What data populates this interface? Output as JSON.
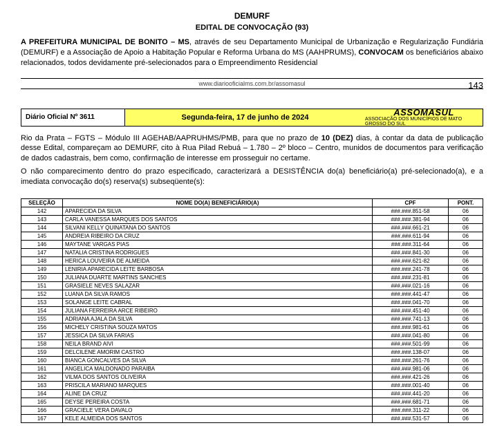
{
  "header": {
    "dept": "DEMURF",
    "edital": "EDITAL DE CONVOCAÇÃO (93)"
  },
  "para1_a": "A PREFEITURA MUNICIPAL DE BONITO – MS",
  "para1_b": ", através de seu Departamento Municipal de Urbanização e Regularização Fundiária (DEMURF) e a Associação de Apoio a Habitação Popular e Reforma Urbana do MS (AAHPRUMS), ",
  "para1_c": "CONVOCAM",
  "para1_d": " os beneficiários abaixo relacionados, todos devidamente pré-selecionados para o  Empreendimento Residencial",
  "footer_url": "www.diariooficialms.com.br/assomasul",
  "page_number": "143",
  "banner": {
    "left": "Diário Oficial Nº 3611",
    "mid": "Segunda-feira, 17 de junho de 2024",
    "right_logo": "ASSOMASUL",
    "right_sub": "ASSOCIAÇÃO DOS MUNICÍPIOS DE MATO GROSSO DO SUL"
  },
  "para2_a": "Rio da Prata – FGTS – Módulo III  AGEHAB/AAPRUHMS/PMB, para que no prazo de ",
  "para2_b": "10 (DEZ)",
  "para2_c": " dias, à contar da data de publicação desse Edital,  compareçam ao  DEMURF, cito à Rua Pilad Rebuá – 1.780 – 2º bloco – Centro, munidos de documentos para verificação de dados cadastrais, bem como, confirmação de interesse em prosseguir no certame.",
  "para3": "O não comparecimento dentro do prazo especificado, caracterizará a DESISTÊNCIA do(a) beneficiário(a) pré-selecionado(a), e a imediata convocação do(s) reserva(s) subseqüente(s):",
  "table": {
    "headers": {
      "sel": "SELEÇÃO",
      "nome": "NOME DO(A)  BENEFICIÁRIO(A)",
      "cpf": "CPF",
      "pont": "PONT."
    },
    "rows": [
      {
        "sel": "142",
        "nome": "APARECIDA DA SILVA",
        "cpf": "###.###.851-58",
        "pont": "06"
      },
      {
        "sel": "143",
        "nome": "CARLA VANESSA MARQUES DOS SANTOS",
        "cpf": "###.###.381-94",
        "pont": "06"
      },
      {
        "sel": "144",
        "nome": "SILVANI KELLY QUINATANA DO SANTOS",
        "cpf": "###.###.661-21",
        "pont": "06"
      },
      {
        "sel": "145",
        "nome": "ANDREIA RIBEIRO DA CRUZ",
        "cpf": "###.###.611-94",
        "pont": "06"
      },
      {
        "sel": "146",
        "nome": "MAYTANE VARGAS PIAS",
        "cpf": "###.###.311-64",
        "pont": "06"
      },
      {
        "sel": "147",
        "nome": "NATALIA CRISTINA RODRIGUES",
        "cpf": "###.###.841-30",
        "pont": "06"
      },
      {
        "sel": "148",
        "nome": "HERICA LOUVEIRA DE ALMEIDA",
        "cpf": "###.###.621-82",
        "pont": "06"
      },
      {
        "sel": "149",
        "nome": "LENIRIA APARECIDA LEITE BARBOSA",
        "cpf": "###.###.241-78",
        "pont": "06"
      },
      {
        "sel": "150",
        "nome": "JULIANA DUARTE MARTINS SANCHES",
        "cpf": "###.###.231-81",
        "pont": "06"
      },
      {
        "sel": "151",
        "nome": "GRASIELE NEVES SALAZAR",
        "cpf": "###.###.021-16",
        "pont": "06"
      },
      {
        "sel": "152",
        "nome": "LUANA DA SILVA RAMOS",
        "cpf": "###.###.441-47",
        "pont": "06"
      },
      {
        "sel": "153",
        "nome": "SOLANGE LEITE CABRAL",
        "cpf": "###.###.041-70",
        "pont": "06"
      },
      {
        "sel": "154",
        "nome": "JULIANA FERREIRA ARCE RIBEIRO",
        "cpf": "###.###.451-40",
        "pont": "06"
      },
      {
        "sel": "155",
        "nome": "ADRIANA AJALA DA SILVA",
        "cpf": "###.###.741-13",
        "pont": "06"
      },
      {
        "sel": "156",
        "nome": "MICHELY CRISTINA SOUZA MATOS",
        "cpf": "###.###.981-61",
        "pont": "06"
      },
      {
        "sel": "157",
        "nome": "JESSICA DA SILVA FARIAS",
        "cpf": "###.###.041-80",
        "pont": "06"
      },
      {
        "sel": "158",
        "nome": "NEILA BRAND AIVI",
        "cpf": "###.###.501-99",
        "pont": "06"
      },
      {
        "sel": "159",
        "nome": "DELCILENE AMORIM CASTRO",
        "cpf": "###.###.138-07",
        "pont": "06"
      },
      {
        "sel": "160",
        "nome": "BIANCA GONCALVES DA SILVA",
        "cpf": "###.###.261-76",
        "pont": "06"
      },
      {
        "sel": "161",
        "nome": "ANGELICA MALDONADO PARAIBA",
        "cpf": "###.###.981-06",
        "pont": "06"
      },
      {
        "sel": "162",
        "nome": "VILMA DOS SANTOS OLIVEIRA",
        "cpf": "###.###.421-26",
        "pont": "06"
      },
      {
        "sel": "163",
        "nome": "PRISCILA MARIANO MARQUES",
        "cpf": "###.###.001-40",
        "pont": "06"
      },
      {
        "sel": "164",
        "nome": "ALINE DA  CRUZ",
        "cpf": "###.###.441-20",
        "pont": "06"
      },
      {
        "sel": "165",
        "nome": "DEYSE PEREIRA COSTA",
        "cpf": "###.###.681-71",
        "pont": "06"
      },
      {
        "sel": "166",
        "nome": "GRACIELE VERA DAVALO",
        "cpf": "###.###.311-22",
        "pont": "06"
      },
      {
        "sel": "167",
        "nome": "KELE ALMEIDA DOS SANTOS",
        "cpf": "###.###.531-57",
        "pont": "06"
      }
    ]
  }
}
